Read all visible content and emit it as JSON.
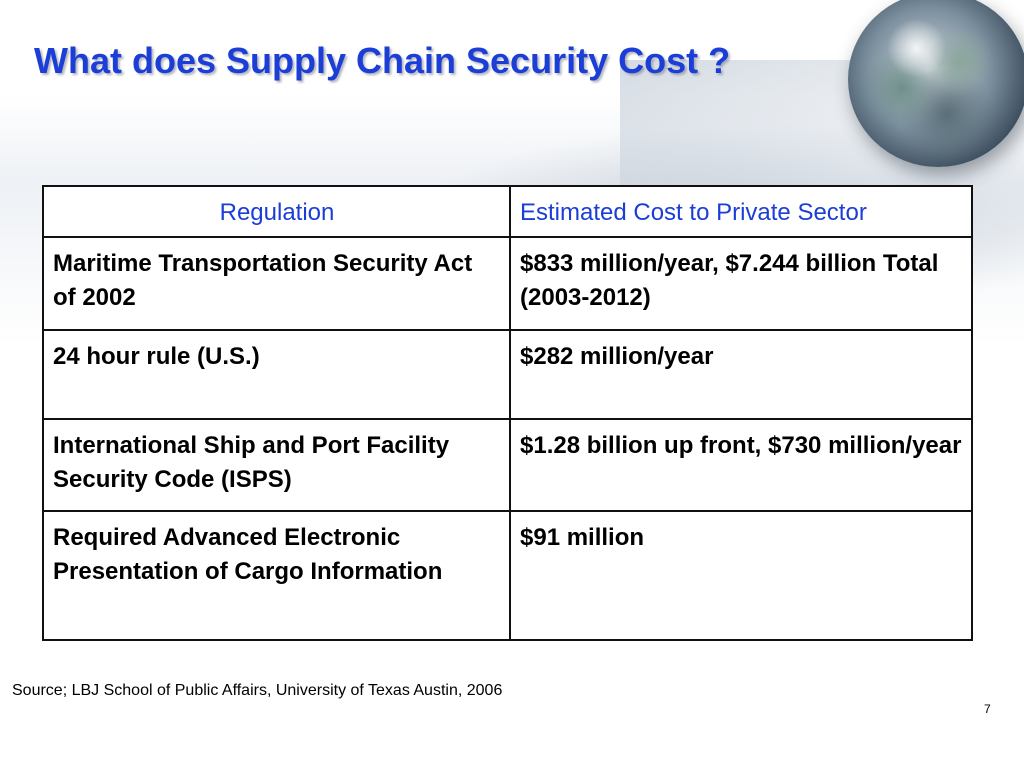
{
  "slide": {
    "title": "What does Supply Chain Security Cost ?",
    "source": "Source; LBJ School of Public Affairs, University of Texas Austin, 2006",
    "page_number": "7"
  },
  "table": {
    "headers": [
      "Regulation",
      "Estimated Cost to Private Sector"
    ],
    "rows": [
      [
        "Maritime Transportation Security Act of 2002",
        "$833 million/year, $7.244 billion Total (2003-2012)"
      ],
      [
        "24 hour rule (U.S.)",
        "$282 million/year"
      ],
      [
        "International Ship and Port Facility Security Code (ISPS)",
        "$1.28 billion up front, $730 million/year"
      ],
      [
        "Required Advanced Electronic Presentation of Cargo Information",
        "$91 million"
      ]
    ]
  },
  "colors": {
    "title": "#1a3ed6",
    "header_text": "#1a3ed6",
    "body_text": "#000000",
    "border": "#111111"
  },
  "icons": {
    "decoration": "globe-icon"
  }
}
